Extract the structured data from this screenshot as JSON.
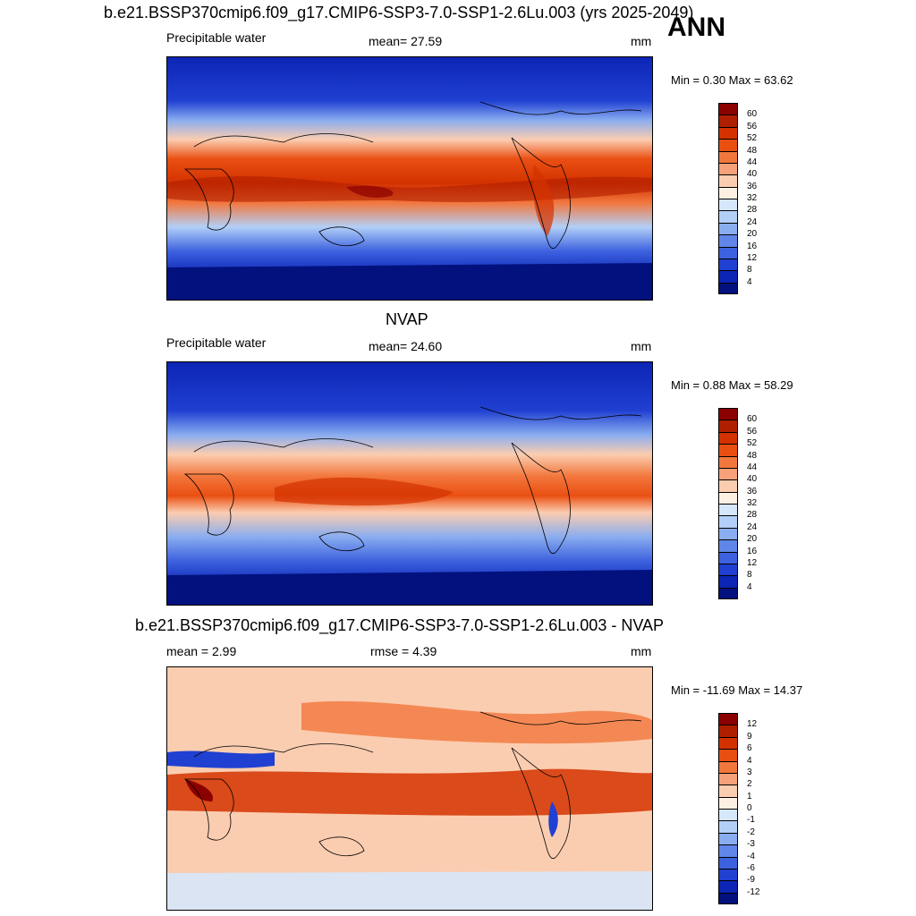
{
  "top": {
    "title": "b.e21.BSSP370cmip6.f09_g17.CMIP6-SSP3-7.0-SSP1-2.6Lu.003 (yrs 2025-2049)",
    "season": "ANN",
    "variable": "Precipitable water",
    "stat": "mean=  27.59",
    "units": "mm",
    "minmax": "Min =   0.30 Max =  63.62"
  },
  "middle": {
    "title": "NVAP",
    "variable": "Precipitable water",
    "stat": "mean=  24.60",
    "units": "mm",
    "minmax": "Min =   0.88 Max =  58.29"
  },
  "bottom": {
    "title": "b.e21.BSSP370cmip6.f09_g17.CMIP6-SSP3-7.0-SSP1-2.6Lu.003 - NVAP",
    "stat_mean": "mean =   2.99",
    "stat_rmse": "rmse =   4.39",
    "units": "mm",
    "minmax": "Min = -11.69 Max =  14.37"
  },
  "colorbar_abs": {
    "labels": [
      "60",
      "56",
      "52",
      "48",
      "44",
      "40",
      "36",
      "32",
      "28",
      "24",
      "20",
      "16",
      "12",
      "8",
      "4"
    ],
    "colors": [
      "#8b0000",
      "#b01e00",
      "#d33200",
      "#ea4f12",
      "#f2773d",
      "#f7a17a",
      "#fbcdb0",
      "#fdf0e3",
      "#d6e7fb",
      "#b2cff7",
      "#8aadf0",
      "#5f86e8",
      "#3d62df",
      "#2040d2",
      "#0c25b5",
      "#02117e"
    ]
  },
  "colorbar_diff": {
    "labels": [
      "12",
      "9",
      "6",
      "4",
      "3",
      "2",
      "1",
      "0",
      "-1",
      "-2",
      "-3",
      "-4",
      "-6",
      "-9",
      "-12"
    ],
    "colors": [
      "#8b0000",
      "#b01e00",
      "#d33200",
      "#ea4f12",
      "#f2773d",
      "#f7a17a",
      "#fbcdb0",
      "#fdf0e3",
      "#d6e7fb",
      "#b2cff7",
      "#8aadf0",
      "#5f86e8",
      "#3d62df",
      "#2040d2",
      "#0c25b5",
      "#02117e"
    ]
  }
}
